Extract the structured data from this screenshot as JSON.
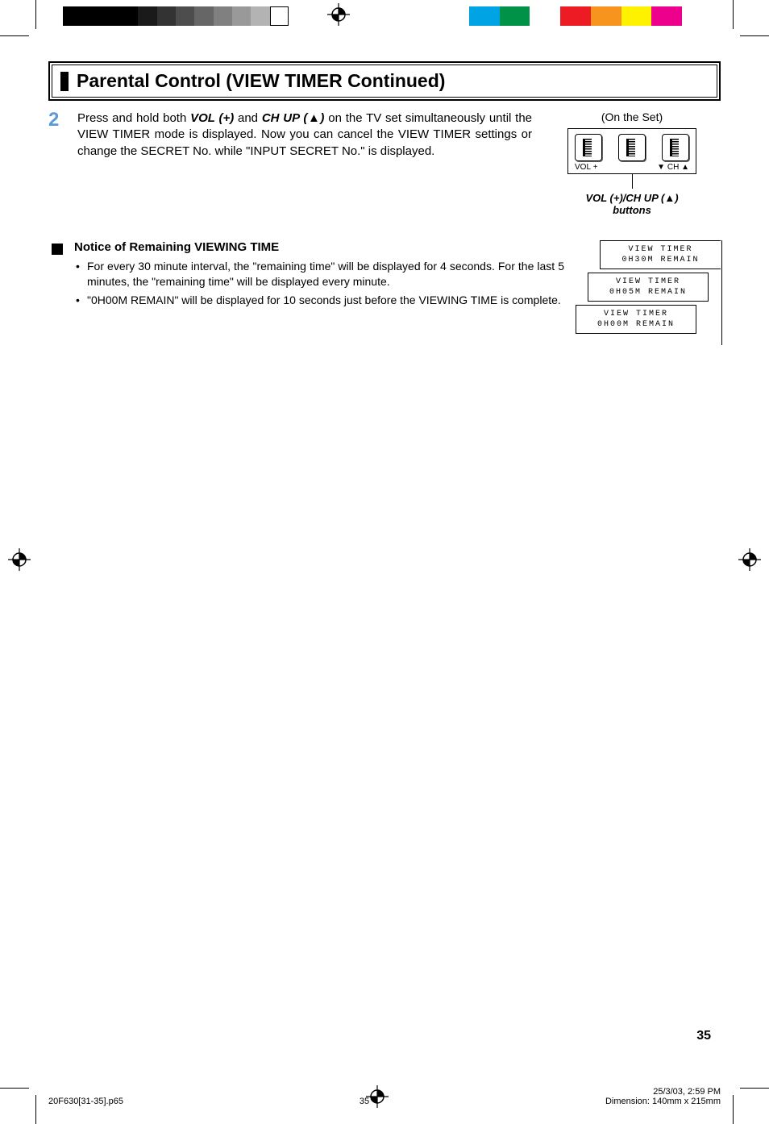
{
  "print_marks": {
    "grayscale_bar": [
      "#000000",
      "#000000",
      "#000000",
      "#1a1a1a",
      "#333333",
      "#4d4d4d",
      "#666666",
      "#808080",
      "#999999",
      "#b3b3b3",
      "#ffffff"
    ],
    "color_bar": [
      "#ffffff",
      "#00a4e4",
      "#009247",
      "#ffffff",
      "#ed1c24",
      "#f7941d",
      "#fff200",
      "#ec008c",
      "#ffffff"
    ]
  },
  "title": "Parental Control (VIEW TIMER Continued)",
  "step": {
    "number": "2",
    "text_parts": {
      "p1": "Press and hold both ",
      "vol": "VOL (+)",
      "p2": " and ",
      "ch": "CH UP (▲)",
      "p3": " on the TV set simultaneously until the VIEW TIMER mode is displayed. Now you can cancel the VIEW TIMER settings or change the SECRET No. while \"INPUT SECRET No.\" is displayed."
    }
  },
  "right": {
    "on_set": "(On the Set)",
    "labels": {
      "vol": "VOL",
      "plus": "+",
      "down": "▼",
      "ch": "CH",
      "up": "▲"
    },
    "caption_line1": "VOL (+)/CH UP (▲)",
    "caption_line2": "buttons"
  },
  "notice": {
    "title": "Notice of Remaining VIEWING TIME",
    "bullets": [
      "For every 30 minute interval, the \"remaining time\" will be displayed for 4 seconds. For the last 5 minutes, the \"remaining time\" will be displayed every minute.",
      "\"0H00M REMAIN\" will be displayed for 10 seconds just before the VIEWING TIME is complete."
    ]
  },
  "osd": {
    "box1": {
      "l1": "VIEW TIMER",
      "l2": "0H30M REMAIN"
    },
    "box2": {
      "l1": "VIEW TIMER",
      "l2": "0H05M REMAIN"
    },
    "box3": {
      "l1": "VIEW TIMER",
      "l2": "0H00M REMAIN"
    }
  },
  "page_number": "35",
  "footer": {
    "left": "20F630[31-35].p65",
    "mid": "35",
    "right_time": "25/3/03, 2:59 PM",
    "right_dim": "Dimension: 140mm x 215mm"
  },
  "colors": {
    "step_number": "#5b9bd5",
    "text": "#000000"
  }
}
